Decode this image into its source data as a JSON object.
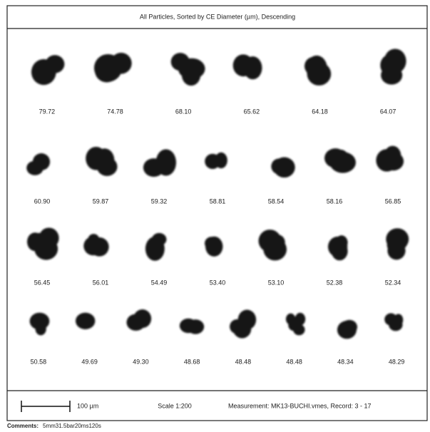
{
  "header": {
    "title": "All Particles, Sorted by CE Diameter (µm), Descending"
  },
  "particles": {
    "rows": [
      [
        "79.72",
        "74.78",
        "68.10",
        "65.62",
        "64.18",
        "64.07"
      ],
      [
        "60.90",
        "59.87",
        "59.32",
        "58.81",
        "58.54",
        "58.16",
        "56.85"
      ],
      [
        "56.45",
        "56.01",
        "54.49",
        "53.40",
        "53.10",
        "52.38",
        "52.34"
      ],
      [
        "50.58",
        "49.69",
        "49.30",
        "48.68",
        "48.48",
        "48.48",
        "48.34",
        "48.29"
      ]
    ]
  },
  "footer": {
    "scale_bar": "100 µm",
    "scale": "Scale 1:200",
    "measurement": "Measurement: MK13-BUCHI.vmes, Record: 3 - 17"
  },
  "comments": {
    "label": "Comments:",
    "text": "5mm31.5bar20ms120s"
  }
}
